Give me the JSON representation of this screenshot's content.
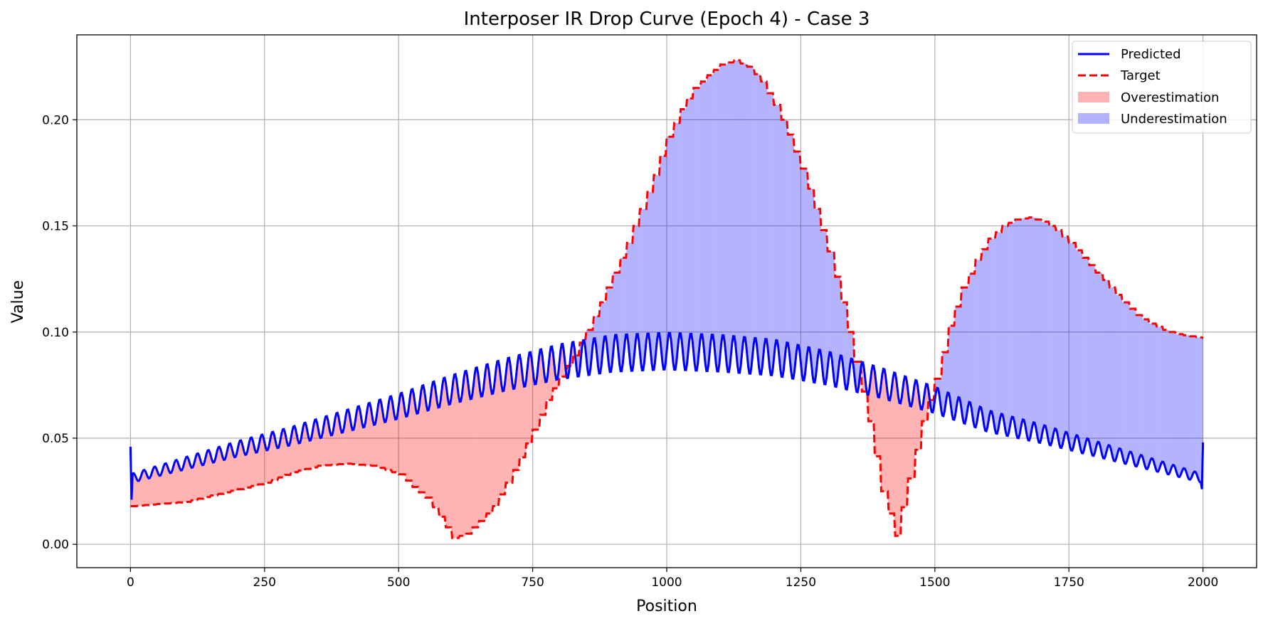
{
  "chart_data": {
    "type": "line",
    "title": "Interposer IR Drop Curve (Epoch 4) - Case 3",
    "xlabel": "Position",
    "ylabel": "Value",
    "xlim": [
      -100,
      2100
    ],
    "ylim": [
      -0.011,
      0.24
    ],
    "xticks": [
      0,
      250,
      500,
      750,
      1000,
      1250,
      1500,
      1750,
      2000
    ],
    "xtick_labels": [
      "0",
      "250",
      "500",
      "750",
      "1000",
      "1250",
      "1500",
      "1750",
      "2000"
    ],
    "yticks": [
      0.0,
      0.05,
      0.1,
      0.15,
      0.2
    ],
    "ytick_labels": [
      "0.00",
      "0.05",
      "0.10",
      "0.15",
      "0.20"
    ],
    "grid": true,
    "legend_position": "upper right",
    "series": [
      {
        "name": "Predicted",
        "style": "solid",
        "color": "#0000ff",
        "oscillation_note": "periodic ripple of ~20 position units, amplitude about +/-0.009 around trend",
        "x": [
          0,
          100,
          200,
          300,
          400,
          500,
          600,
          700,
          800,
          900,
          1000,
          1100,
          1200,
          1300,
          1400,
          1500,
          1600,
          1700,
          1800,
          1900,
          2000
        ],
        "y": [
          0.031,
          0.038,
          0.045,
          0.051,
          0.058,
          0.065,
          0.073,
          0.08,
          0.086,
          0.09,
          0.091,
          0.09,
          0.088,
          0.083,
          0.076,
          0.068,
          0.058,
          0.052,
          0.045,
          0.038,
          0.031
        ]
      },
      {
        "name": "Target",
        "style": "dashed",
        "color": "#ff0000",
        "x": [
          0,
          50,
          100,
          150,
          200,
          250,
          300,
          350,
          400,
          450,
          500,
          525,
          550,
          575,
          600,
          625,
          650,
          675,
          700,
          725,
          750,
          775,
          800,
          825,
          850,
          875,
          900,
          925,
          950,
          975,
          1000,
          1025,
          1050,
          1075,
          1100,
          1125,
          1150,
          1175,
          1200,
          1225,
          1250,
          1275,
          1300,
          1325,
          1350,
          1375,
          1400,
          1425,
          1450,
          1475,
          1500,
          1525,
          1550,
          1575,
          1600,
          1625,
          1650,
          1675,
          1700,
          1725,
          1750,
          1775,
          1800,
          1825,
          1850,
          1875,
          1900,
          1925,
          1950,
          1975,
          2000
        ],
        "y": [
          0.018,
          0.019,
          0.02,
          0.023,
          0.026,
          0.029,
          0.034,
          0.037,
          0.038,
          0.037,
          0.033,
          0.027,
          0.022,
          0.013,
          0.003,
          0.005,
          0.011,
          0.018,
          0.029,
          0.041,
          0.054,
          0.068,
          0.079,
          0.089,
          0.101,
          0.114,
          0.128,
          0.142,
          0.158,
          0.174,
          0.192,
          0.205,
          0.215,
          0.221,
          0.226,
          0.228,
          0.225,
          0.218,
          0.207,
          0.193,
          0.177,
          0.158,
          0.138,
          0.114,
          0.086,
          0.058,
          0.025,
          0.004,
          0.031,
          0.058,
          0.078,
          0.103,
          0.121,
          0.134,
          0.144,
          0.15,
          0.153,
          0.154,
          0.152,
          0.148,
          0.142,
          0.135,
          0.128,
          0.121,
          0.114,
          0.108,
          0.104,
          0.101,
          0.099,
          0.098,
          0.097
        ]
      }
    ],
    "fills": [
      {
        "name": "Overestimation",
        "color": "#ff0000",
        "alpha": 0.3,
        "where": "predicted > target"
      },
      {
        "name": "Underestimation",
        "color": "#0000ff",
        "alpha": 0.3,
        "where": "predicted < target"
      }
    ]
  }
}
